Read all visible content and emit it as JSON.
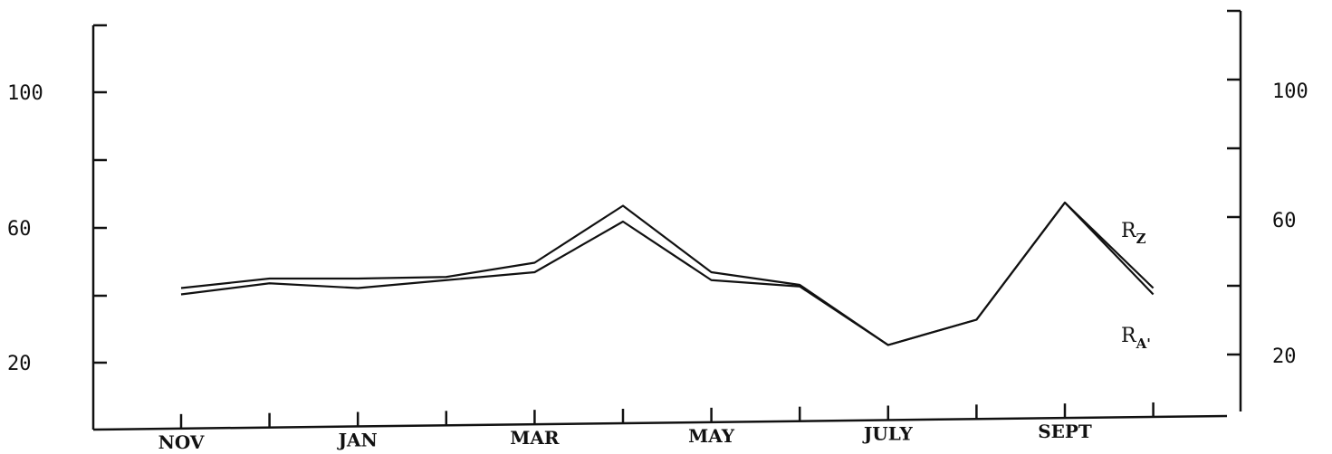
{
  "chart_data": {
    "type": "line",
    "x_tick_labels": [
      "NOV",
      "",
      "JAN",
      "",
      "MAR",
      "",
      "MAY",
      "",
      "JULY",
      "",
      "SEPT",
      ""
    ],
    "y_tick_labels_left": [
      "100",
      "60",
      "20"
    ],
    "y_tick_labels_right": [
      "100",
      "60",
      "20"
    ],
    "y_ticks": [
      0,
      20,
      40,
      60,
      80,
      100,
      120
    ],
    "ylim": [
      -8,
      120
    ],
    "xlim": [
      -1,
      12
    ],
    "series": [
      {
        "name": "R",
        "name_subscript": "Z",
        "values": [
          37,
          40,
          40,
          40.5,
          45,
          63,
          42,
          38,
          19,
          27,
          64,
          37
        ]
      },
      {
        "name": "R",
        "name_subscript": "A'",
        "values": [
          35,
          38.5,
          37,
          39.5,
          42,
          58,
          39.5,
          37.5,
          19,
          27,
          64,
          35
        ]
      }
    ],
    "title": "",
    "xlabel": "",
    "ylabel": "",
    "grid": false
  }
}
